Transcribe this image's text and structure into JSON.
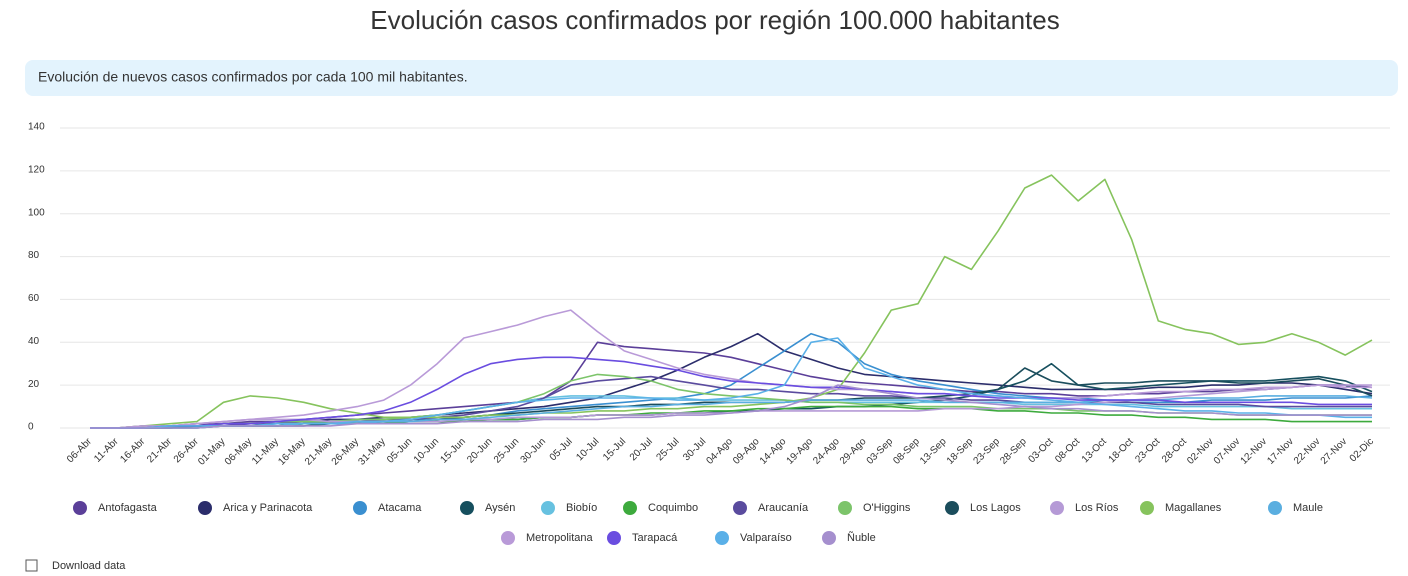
{
  "chart_data": {
    "type": "line",
    "title": "Evolución casos confirmados por región 100.000 habitantes",
    "subtitle": "Evolución de nuevos casos confirmados por cada 100 mil habitantes.",
    "download": "Download data",
    "ylim": [
      0,
      140
    ],
    "yticks": [
      0,
      20,
      40,
      60,
      80,
      100,
      120,
      140
    ],
    "grid": true,
    "legend": "bottom",
    "categories": [
      "06-Abr",
      "11-Abr",
      "16-Abr",
      "21-Abr",
      "26-Abr",
      "01-May",
      "06-May",
      "11-May",
      "16-May",
      "21-May",
      "26-May",
      "31-May",
      "05-Jun",
      "10-Jun",
      "15-Jun",
      "20-Jun",
      "25-Jun",
      "30-Jun",
      "05-Jul",
      "10-Jul",
      "15-Jul",
      "20-Jul",
      "25-Jul",
      "30-Jul",
      "04-Ago",
      "09-Ago",
      "14-Ago",
      "19-Ago",
      "24-Ago",
      "29-Ago",
      "03-Sep",
      "08-Sep",
      "13-Sep",
      "18-Sep",
      "23-Sep",
      "28-Sep",
      "03-Oct",
      "08-Oct",
      "13-Oct",
      "18-Oct",
      "23-Oct",
      "28-Oct",
      "02-Nov",
      "07-Nov",
      "12-Nov",
      "17-Nov",
      "22-Nov",
      "27-Nov",
      "02-Dic"
    ],
    "series": [
      {
        "name": "Antofagasta",
        "color": "#5b3f99",
        "values": [
          0,
          0,
          1,
          1,
          2,
          2,
          3,
          3,
          4,
          5,
          6,
          7,
          8,
          9,
          10,
          11,
          12,
          14,
          22,
          40,
          38,
          37,
          36,
          35,
          33,
          30,
          27,
          24,
          22,
          21,
          20,
          19,
          18,
          17,
          17,
          16,
          16,
          15,
          15,
          16,
          16,
          17,
          17,
          18,
          18,
          19,
          20,
          20,
          19
        ]
      },
      {
        "name": "Arica y Parinacota",
        "color": "#2b2d6b",
        "values": [
          0,
          0,
          0,
          1,
          1,
          2,
          2,
          3,
          3,
          4,
          4,
          5,
          5,
          6,
          7,
          8,
          9,
          10,
          12,
          14,
          18,
          22,
          27,
          33,
          38,
          44,
          36,
          32,
          28,
          25,
          24,
          23,
          22,
          21,
          20,
          19,
          18,
          18,
          18,
          18,
          19,
          19,
          20,
          20,
          21,
          21,
          20,
          18,
          16
        ]
      },
      {
        "name": "Atacama",
        "color": "#3a8fd0",
        "values": [
          0,
          0,
          0,
          0,
          1,
          1,
          1,
          2,
          2,
          2,
          3,
          3,
          4,
          4,
          5,
          6,
          8,
          9,
          10,
          11,
          12,
          13,
          14,
          16,
          20,
          28,
          36,
          44,
          40,
          30,
          25,
          22,
          20,
          18,
          16,
          15,
          14,
          14,
          13,
          12,
          12,
          12,
          13,
          13,
          13,
          14,
          14,
          14,
          15
        ]
      },
      {
        "name": "Aysén",
        "color": "#164f5e",
        "values": [
          0,
          0,
          0,
          0,
          0,
          1,
          1,
          1,
          1,
          2,
          2,
          2,
          3,
          3,
          3,
          4,
          4,
          5,
          5,
          6,
          6,
          6,
          7,
          7,
          8,
          8,
          9,
          9,
          10,
          10,
          11,
          12,
          13,
          15,
          18,
          22,
          30,
          20,
          18,
          19,
          20,
          21,
          22,
          22,
          22,
          23,
          24,
          22,
          17
        ]
      },
      {
        "name": "Biobío",
        "color": "#67c1e0",
        "values": [
          0,
          0,
          0,
          1,
          1,
          1,
          2,
          2,
          2,
          3,
          3,
          4,
          5,
          6,
          8,
          10,
          12,
          14,
          15,
          15,
          15,
          14,
          14,
          13,
          13,
          13,
          13,
          12,
          12,
          12,
          12,
          12,
          12,
          12,
          12,
          11,
          11,
          11,
          11,
          11,
          10,
          10,
          10,
          10,
          10,
          9,
          9,
          9,
          9
        ]
      },
      {
        "name": "Coquimbo",
        "color": "#3daa3d",
        "values": [
          0,
          0,
          0,
          0,
          1,
          1,
          1,
          1,
          2,
          2,
          2,
          2,
          3,
          3,
          3,
          4,
          4,
          5,
          5,
          6,
          6,
          7,
          7,
          8,
          8,
          9,
          9,
          10,
          10,
          10,
          10,
          9,
          9,
          9,
          8,
          8,
          7,
          7,
          6,
          6,
          5,
          5,
          4,
          4,
          4,
          3,
          3,
          3,
          3
        ]
      },
      {
        "name": "Araucanía",
        "color": "#5a4b9e",
        "values": [
          0,
          0,
          0,
          1,
          1,
          1,
          2,
          2,
          3,
          3,
          3,
          4,
          4,
          5,
          6,
          8,
          10,
          14,
          20,
          22,
          23,
          24,
          22,
          20,
          18,
          18,
          17,
          16,
          16,
          15,
          15,
          14,
          14,
          13,
          13,
          12,
          12,
          12,
          12,
          12,
          11,
          11,
          11,
          11,
          10,
          10,
          10,
          10,
          10
        ]
      },
      {
        "name": "O'Higgins",
        "color": "#7cc46a",
        "values": [
          0,
          0,
          0,
          1,
          1,
          2,
          2,
          3,
          3,
          3,
          4,
          4,
          5,
          6,
          8,
          10,
          12,
          16,
          22,
          25,
          24,
          22,
          18,
          16,
          15,
          14,
          13,
          12,
          12,
          11,
          11,
          10,
          10,
          10,
          9,
          9,
          9,
          8,
          8,
          8,
          7,
          7,
          7,
          6,
          6,
          6,
          6,
          6,
          6
        ]
      },
      {
        "name": "Los Lagos",
        "color": "#1b4d5c",
        "values": [
          0,
          0,
          0,
          0,
          1,
          1,
          1,
          1,
          2,
          2,
          2,
          3,
          3,
          4,
          5,
          6,
          7,
          8,
          9,
          10,
          10,
          11,
          11,
          12,
          12,
          12,
          12,
          13,
          13,
          14,
          14,
          14,
          15,
          16,
          18,
          28,
          22,
          20,
          21,
          21,
          22,
          22,
          22,
          21,
          21,
          22,
          23,
          20,
          15
        ]
      },
      {
        "name": "Los Ríos",
        "color": "#b59ad6",
        "values": [
          0,
          0,
          1,
          1,
          2,
          3,
          4,
          4,
          4,
          3,
          3,
          3,
          3,
          3,
          4,
          4,
          5,
          5,
          5,
          6,
          6,
          6,
          7,
          7,
          7,
          8,
          8,
          8,
          8,
          8,
          8,
          8,
          9,
          9,
          9,
          10,
          10,
          11,
          12,
          13,
          14,
          15,
          16,
          17,
          18,
          19,
          20,
          20,
          20
        ]
      },
      {
        "name": "Magallanes",
        "color": "#86c35d",
        "values": [
          0,
          0,
          1,
          2,
          3,
          12,
          15,
          14,
          12,
          9,
          7,
          5,
          5,
          5,
          5,
          6,
          6,
          7,
          7,
          8,
          8,
          9,
          9,
          10,
          10,
          11,
          12,
          14,
          18,
          35,
          55,
          58,
          80,
          74,
          92,
          112,
          118,
          106,
          116,
          88,
          50,
          46,
          44,
          39,
          40,
          44,
          40,
          34,
          41
        ]
      },
      {
        "name": "Maule",
        "color": "#5aaee0",
        "values": [
          0,
          0,
          0,
          0,
          0,
          1,
          1,
          1,
          2,
          2,
          2,
          3,
          3,
          4,
          4,
          5,
          6,
          7,
          8,
          9,
          10,
          10,
          11,
          11,
          12,
          12,
          12,
          13,
          13,
          13,
          13,
          13,
          12,
          12,
          12,
          12,
          12,
          12,
          13,
          13,
          13,
          14,
          14,
          14,
          15,
          15,
          15,
          15,
          14
        ]
      },
      {
        "name": "Metropolitana",
        "color": "#b99ad8",
        "values": [
          0,
          0,
          1,
          1,
          2,
          3,
          4,
          5,
          6,
          8,
          10,
          13,
          20,
          30,
          42,
          45,
          48,
          52,
          55,
          45,
          36,
          32,
          28,
          25,
          23,
          21,
          20,
          19,
          18,
          18,
          17,
          16,
          16,
          15,
          15,
          14,
          14,
          14,
          15,
          16,
          17,
          17,
          18,
          18,
          19,
          19,
          20,
          19,
          19
        ]
      },
      {
        "name": "Tarapacá",
        "color": "#6a4de0",
        "values": [
          0,
          0,
          0,
          1,
          1,
          2,
          2,
          3,
          4,
          5,
          6,
          8,
          12,
          18,
          25,
          30,
          32,
          33,
          33,
          32,
          31,
          29,
          27,
          24,
          22,
          21,
          20,
          19,
          19,
          18,
          17,
          16,
          16,
          15,
          14,
          14,
          14,
          13,
          13,
          13,
          13,
          12,
          12,
          12,
          12,
          12,
          11,
          11,
          11
        ]
      },
      {
        "name": "Valparaíso",
        "color": "#5ab0e8",
        "values": [
          0,
          0,
          0,
          1,
          1,
          1,
          1,
          2,
          2,
          2,
          3,
          3,
          4,
          6,
          8,
          10,
          12,
          13,
          14,
          14,
          14,
          14,
          13,
          13,
          14,
          16,
          20,
          40,
          42,
          28,
          24,
          20,
          18,
          16,
          15,
          14,
          13,
          12,
          11,
          10,
          9,
          8,
          8,
          7,
          7,
          6,
          6,
          5,
          5
        ]
      },
      {
        "name": "Ñuble",
        "color": "#a58fce",
        "values": [
          0,
          0,
          0,
          0,
          0,
          1,
          1,
          1,
          1,
          1,
          2,
          2,
          2,
          2,
          3,
          3,
          3,
          4,
          4,
          4,
          5,
          5,
          6,
          6,
          7,
          8,
          10,
          14,
          20,
          18,
          16,
          14,
          13,
          12,
          11,
          10,
          9,
          9,
          8,
          8,
          7,
          7,
          7,
          6,
          6,
          6,
          6,
          6,
          6
        ]
      }
    ]
  }
}
